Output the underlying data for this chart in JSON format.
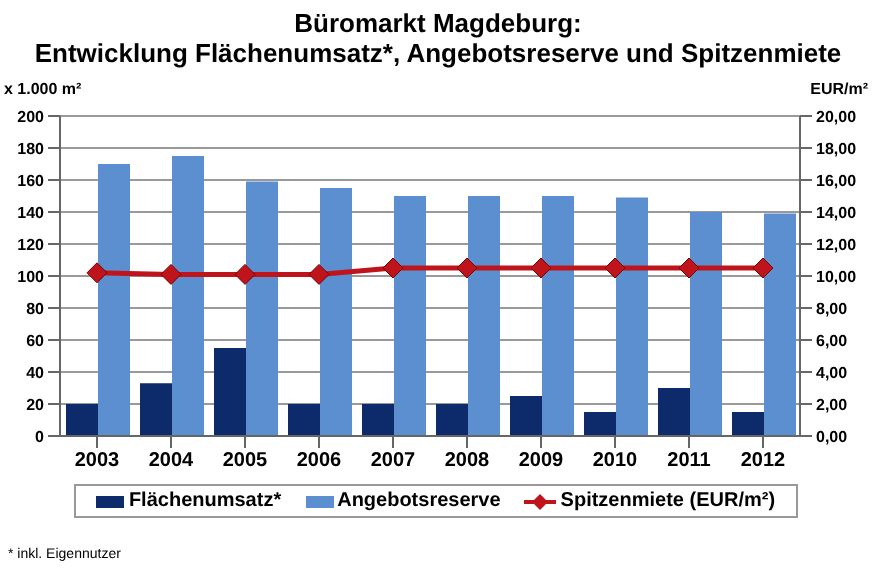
{
  "chart_data": {
    "type": "bar",
    "title": "Büromarkt Magdeburg:",
    "subtitle": "Entwicklung Flächenumsatz*, Angebotsreserve und Spitzenmiete",
    "ylabel": "x 1.000 m²",
    "y2label": "EUR/m²",
    "annotations": [
      "* inkl. Eigennutzer"
    ],
    "categories": [
      "2003",
      "2004",
      "2005",
      "2006",
      "2007",
      "2008",
      "2009",
      "2010",
      "2011",
      "2012"
    ],
    "series": [
      {
        "name": "Flächenumsatz*",
        "color": "#0d2a6b",
        "values": [
          20,
          33,
          55,
          20,
          20,
          20,
          25,
          15,
          30,
          15
        ]
      },
      {
        "name": "Angebotsreserve",
        "color": "#5b8fd0",
        "values": [
          170,
          175,
          159,
          155,
          150,
          150,
          150,
          149,
          140,
          139
        ]
      },
      {
        "name": "Spitzenmiete (EUR/m²)",
        "type": "line",
        "axis": "y2",
        "color": "#c0141c",
        "marker": "diamond",
        "values": [
          10.2,
          10.1,
          10.1,
          10.1,
          10.5,
          10.5,
          10.5,
          10.5,
          10.5,
          10.5
        ]
      }
    ],
    "ylim": [
      0,
      200
    ],
    "yticks": [
      0,
      20,
      40,
      60,
      80,
      100,
      120,
      140,
      160,
      180,
      200
    ],
    "y2lim": [
      0,
      20
    ],
    "y2ticks": [
      {
        "value": 0,
        "label": "0,00"
      },
      {
        "value": 2,
        "label": "2,00"
      },
      {
        "value": 4,
        "label": "4,00"
      },
      {
        "value": 6,
        "label": "6,00"
      },
      {
        "value": 8,
        "label": "8,00"
      },
      {
        "value": 10,
        "label": "10,00"
      },
      {
        "value": 12,
        "label": "12,00"
      },
      {
        "value": 14,
        "label": "14,00"
      },
      {
        "value": 16,
        "label": "16,00"
      },
      {
        "value": 18,
        "label": "18,00"
      },
      {
        "value": 20,
        "label": "20,00"
      }
    ],
    "grid": "y",
    "legend": "bottom"
  }
}
